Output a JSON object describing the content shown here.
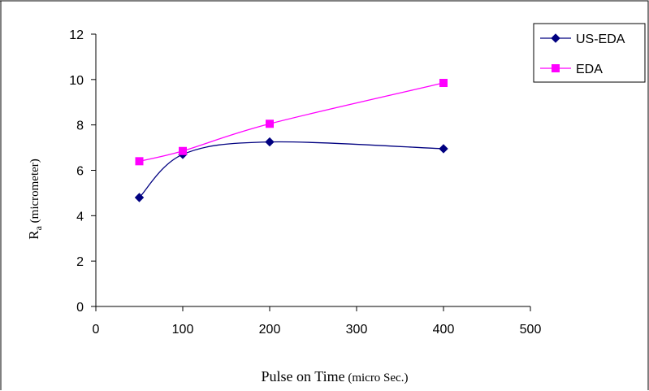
{
  "chart_data": {
    "type": "line",
    "title": "",
    "xlabel": "Pulse on Time",
    "xlabel_unit": "(micro Sec.)",
    "ylabel_main": "R",
    "ylabel_sub": "a",
    "ylabel_unit": "(micrometer)",
    "xlim": [
      0,
      500
    ],
    "ylim": [
      0,
      12
    ],
    "x_ticks": [
      0,
      100,
      200,
      300,
      400,
      500
    ],
    "y_ticks": [
      0,
      2,
      4,
      6,
      8,
      10,
      12
    ],
    "grid": false,
    "legend_position": "top-right",
    "x": [
      50,
      100,
      200,
      400
    ],
    "series": [
      {
        "name": "US-EDA",
        "values": [
          4.8,
          6.7,
          7.25,
          6.95
        ],
        "color": "#000080",
        "marker": "diamond"
      },
      {
        "name": "EDA",
        "values": [
          6.4,
          6.85,
          8.05,
          9.85
        ],
        "color": "#FF00FF",
        "marker": "square"
      }
    ]
  }
}
